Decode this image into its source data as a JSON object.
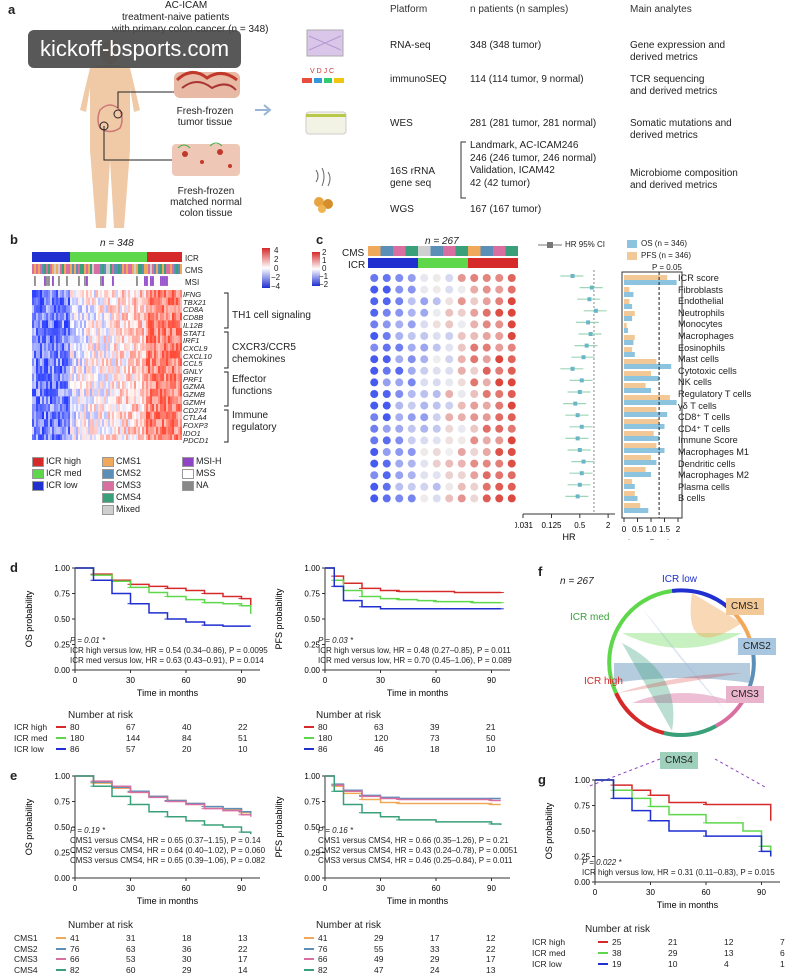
{
  "panel_a": {
    "letter": "a",
    "title": "AC-ICAM",
    "subtitle": "treatment-naive patients",
    "subtitle2": "with primary colon cancer (n = 348)",
    "tissue1": "Fresh-frozen\ntumor tissue",
    "tissue2": "Fresh-frozen\nmatched normal\ncolon tissue",
    "headers": [
      "Platform",
      "n patients (n samples)",
      "Main analytes"
    ],
    "rows": [
      {
        "platform": "RNA-seq",
        "n": "348 (348 tumor)",
        "analytes": "Gene expression and\nderived metrics"
      },
      {
        "platform": "immunoSEQ",
        "n": "114 (114 tumor, 9 normal)",
        "analytes": "TCR sequencing\nand derived metrics"
      },
      {
        "platform": "WES",
        "n": "281 (281 tumor, 281 normal)",
        "analytes": "Somatic mutations and\nderived metrics"
      },
      {
        "platform": "16S rRNA\ngene seq",
        "n": "Landmark, AC-ICAM246\n246 (246 tumor, 246 normal)\nValidation, ICAM42\n42 (42 tumor)",
        "analytes": "Microbiome composition\nand derived metrics"
      },
      {
        "platform": "WGS",
        "n": "167 (167 tumor)",
        "analytes": ""
      }
    ],
    "vdjc": "V  D  J  C"
  },
  "watermark": "kickoff-bsports.com",
  "panel_b": {
    "letter": "b",
    "n_label": "n = 348",
    "track_labels": [
      "ICR",
      "CMS",
      "MSI"
    ],
    "scale": [
      "4",
      "2",
      "0",
      "−2",
      "−4"
    ],
    "genes": [
      "IFNG",
      "TBX21",
      "CD8A",
      "CD8B",
      "IL12B",
      "STAT1",
      "IRF1",
      "CXCL9",
      "CXCL10",
      "CCL5",
      "GNLY",
      "PRF1",
      "GZMA",
      "GZMB",
      "GZMH",
      "CD274",
      "CTLA4",
      "FOXP3",
      "IDO1",
      "PDCD1"
    ],
    "groups": [
      "TH1 cell signaling",
      "CXCR3/CCR5\nchemokines",
      "Effector\nfunctions",
      "Immune\nregulatory"
    ],
    "legend": [
      {
        "label": "ICR high",
        "color": "#d62a2a"
      },
      {
        "label": "ICR med",
        "color": "#5ed84a"
      },
      {
        "label": "ICR low",
        "color": "#1f2fd0"
      },
      {
        "label": "CMS1",
        "color": "#f0a95a"
      },
      {
        "label": "CMS2",
        "color": "#5b8fb8"
      },
      {
        "label": "CMS3",
        "color": "#d96fa0"
      },
      {
        "label": "CMS4",
        "color": "#3aa07a"
      },
      {
        "label": "Mixed",
        "color": "#cfcfcf"
      },
      {
        "label": "MSI-H",
        "color": "#8e44c4"
      },
      {
        "label": "MSS",
        "color": "#ffffff"
      },
      {
        "label": "NA",
        "color": "#888888"
      }
    ]
  },
  "panel_c": {
    "letter": "c",
    "n_label": "n = 267",
    "track_labels": [
      "CMS",
      "ICR"
    ],
    "scale": [
      "2",
      "1",
      "0",
      "−1",
      "−2"
    ],
    "hr_legend": "HR 95% CI",
    "os_legend": "OS (n = 346)",
    "pfs_legend": "PFS (n = 346)",
    "p_label": "P = 0.05",
    "hr_ticks": [
      "0.031",
      "0.125",
      "0.5",
      "2"
    ],
    "hr_xlabel": "HR",
    "p_ticks": [
      "0",
      "0.5",
      "1.0",
      "1.5",
      "2"
    ],
    "p_xlabel": "−log₁₀ P value",
    "cells": [
      "ICR score",
      "Fibroblasts",
      "Endothelial",
      "Neutrophils",
      "Monocytes",
      "Macrophages",
      "Eosinophils",
      "Mast cells",
      "Cytotoxic cells",
      "NK cells",
      "Regulatory T cells",
      "γδ T cells",
      "CD8⁺ T cells",
      "CD4⁺ T cells",
      "Immune Score",
      "Macrophages M1",
      "Dendritic cells",
      "Macrophages M2",
      "Plasma cells",
      "B cells"
    ],
    "hr": [
      0.35,
      0.9,
      0.8,
      1.1,
      0.75,
      0.85,
      0.7,
      0.6,
      0.35,
      0.55,
      0.5,
      0.4,
      0.45,
      0.55,
      0.45,
      0.5,
      0.6,
      0.55,
      0.5,
      0.45
    ],
    "os_p": [
      1.95,
      0.35,
      0.3,
      0.3,
      0.15,
      0.35,
      0.4,
      1.75,
      1.3,
      1.0,
      1.95,
      1.6,
      1.5,
      1.3,
      1.5,
      1.2,
      1.0,
      0.4,
      0.5,
      0.9
    ],
    "pfs_p": [
      1.6,
      0.2,
      0.2,
      0.4,
      0.1,
      0.4,
      0.3,
      1.2,
      1.0,
      0.8,
      1.7,
      1.2,
      1.3,
      1.1,
      1.2,
      1.0,
      0.8,
      0.3,
      0.4,
      0.6
    ]
  },
  "panel_d": {
    "letter": "d",
    "os": {
      "ylabel": "OS probability",
      "xlabel": "Time in months",
      "p": "P = 0.01 *",
      "line1": "ICR high versus low, HR = 0.54 (0.34–0.86), P = 0.0095",
      "line2": "ICR med versus low, HR = 0.63 (0.43–0.91), P = 0.014"
    },
    "pfs": {
      "ylabel": "PFS probability",
      "xlabel": "Time in months",
      "p": "P = 0.03 *",
      "line1": "ICR high versus low, HR = 0.48 (0.27–0.85), P = 0.011",
      "line2": "ICR med versus low, HR = 0.70 (0.45–1.06), P = 0.089"
    },
    "risk_title": "Number at risk",
    "risk_groups": [
      "ICR high",
      "ICR med",
      "ICR low"
    ],
    "risk_os": [
      [
        "80",
        "67",
        "40",
        "22"
      ],
      [
        "180",
        "144",
        "84",
        "51"
      ],
      [
        "86",
        "57",
        "20",
        "10"
      ]
    ],
    "risk_pfs": [
      [
        "80",
        "63",
        "39",
        "21"
      ],
      [
        "180",
        "120",
        "73",
        "50"
      ],
      [
        "86",
        "46",
        "18",
        "10"
      ]
    ]
  },
  "panel_e": {
    "letter": "e",
    "os": {
      "ylabel": "OS probability",
      "xlabel": "Time in months",
      "p": "P = 0.19 *",
      "line1": "CMS1 versus CMS4, HR = 0.65 (0.37–1.15), P = 0.14",
      "line2": "CMS2 versus CMS4, HR = 0.64 (0.40–1.02), P = 0.060",
      "line3": "CMS3 versus CMS4, HR = 0.65 (0.39–1.06), P = 0.082"
    },
    "pfs": {
      "ylabel": "PFS probability",
      "xlabel": "Time in months",
      "p": "P = 0.16 *",
      "line1": "CMS1 versus CMS4, HR = 0.66 (0.35–1.26), P = 0.21",
      "line2": "CMS2 versus CMS4, HR = 0.43 (0.24–0.78), P = 0.0051",
      "line3": "CMS3 versus CMS4, HR = 0.46 (0.25–0.84), P = 0.011"
    },
    "risk_title": "Number at risk",
    "risk_groups": [
      "CMS1",
      "CMS2",
      "CMS3",
      "CMS4"
    ],
    "risk_os": [
      [
        "41",
        "31",
        "18",
        "13"
      ],
      [
        "76",
        "63",
        "36",
        "22"
      ],
      [
        "66",
        "53",
        "30",
        "17"
      ],
      [
        "82",
        "60",
        "29",
        "14"
      ]
    ],
    "risk_pfs": [
      [
        "41",
        "29",
        "17",
        "12"
      ],
      [
        "76",
        "55",
        "33",
        "22"
      ],
      [
        "66",
        "49",
        "29",
        "17"
      ],
      [
        "82",
        "47",
        "24",
        "13"
      ]
    ]
  },
  "panel_f": {
    "letter": "f",
    "n_label": "n = 267",
    "labels": [
      "ICR low",
      "CMS1",
      "CMS2",
      "CMS3",
      "CMS4",
      "ICR high",
      "ICR med"
    ]
  },
  "panel_g": {
    "letter": "g",
    "ylabel": "OS probability",
    "xlabel": "Time in months",
    "p": "P = 0.022 *",
    "line1": "ICR high versus low, HR = 0.31 (0.11–0.83), P = 0.015",
    "risk_title": "Number at risk",
    "risk_groups": [
      "ICR high",
      "ICR med",
      "ICR low"
    ],
    "risk": [
      [
        "25",
        "21",
        "12",
        "7"
      ],
      [
        "38",
        "29",
        "13",
        "6"
      ],
      [
        "19",
        "10",
        "4",
        "1"
      ]
    ]
  },
  "chart_data": [
    {
      "type": "line",
      "id": "d_os",
      "ylabel": "OS probability",
      "xlabel": "Time in months",
      "xlim": [
        0,
        100
      ],
      "ylim": [
        0,
        1
      ],
      "x_ticks": [
        0,
        30,
        60,
        90
      ],
      "series": [
        {
          "name": "ICR high",
          "color": "#d62a2a",
          "x": [
            0,
            10,
            20,
            30,
            40,
            50,
            60,
            70,
            80,
            90,
            95
          ],
          "y": [
            1,
            0.94,
            0.88,
            0.84,
            0.82,
            0.8,
            0.78,
            0.75,
            0.72,
            0.7,
            0.6
          ]
        },
        {
          "name": "ICR med",
          "color": "#5ed84a",
          "x": [
            0,
            10,
            20,
            30,
            40,
            50,
            60,
            70,
            80,
            90,
            95
          ],
          "y": [
            1,
            0.93,
            0.87,
            0.81,
            0.76,
            0.72,
            0.69,
            0.66,
            0.65,
            0.63,
            0.55
          ]
        },
        {
          "name": "ICR low",
          "color": "#1f2fd0",
          "x": [
            0,
            10,
            20,
            30,
            40,
            50,
            60,
            70,
            80,
            90,
            95
          ],
          "y": [
            1,
            0.88,
            0.75,
            0.65,
            0.56,
            0.5,
            0.47,
            0.44,
            0.43,
            0.43,
            0.43
          ]
        }
      ]
    },
    {
      "type": "line",
      "id": "d_pfs",
      "ylabel": "PFS probability",
      "xlabel": "Time in months",
      "xlim": [
        0,
        100
      ],
      "ylim": [
        0,
        1
      ],
      "x_ticks": [
        0,
        30,
        60,
        90
      ],
      "series": [
        {
          "name": "ICR high",
          "color": "#d62a2a",
          "x": [
            0,
            5,
            10,
            20,
            30,
            40,
            50,
            60,
            70,
            80,
            90,
            95
          ],
          "y": [
            1,
            0.92,
            0.85,
            0.8,
            0.78,
            0.77,
            0.77,
            0.77,
            0.76,
            0.76,
            0.76,
            0.76
          ]
        },
        {
          "name": "ICR med",
          "color": "#5ed84a",
          "x": [
            0,
            5,
            10,
            20,
            30,
            40,
            50,
            60,
            70,
            80,
            90,
            95
          ],
          "y": [
            1,
            0.88,
            0.78,
            0.72,
            0.7,
            0.69,
            0.68,
            0.67,
            0.67,
            0.66,
            0.66,
            0.66
          ]
        },
        {
          "name": "ICR low",
          "color": "#1f2fd0",
          "x": [
            0,
            5,
            10,
            20,
            30,
            40,
            50,
            60,
            70,
            80,
            90,
            95
          ],
          "y": [
            1,
            0.82,
            0.68,
            0.62,
            0.6,
            0.6,
            0.6,
            0.6,
            0.6,
            0.6,
            0.6,
            0.6
          ]
        }
      ]
    },
    {
      "type": "line",
      "id": "e_os",
      "ylabel": "OS probability",
      "xlabel": "Time in months",
      "xlim": [
        0,
        100
      ],
      "ylim": [
        0,
        1
      ],
      "x_ticks": [
        0,
        30,
        60,
        90
      ],
      "series": [
        {
          "name": "CMS1",
          "color": "#f0a95a",
          "x": [
            0,
            10,
            20,
            30,
            40,
            50,
            60,
            70,
            80,
            90,
            95
          ],
          "y": [
            1,
            0.93,
            0.88,
            0.84,
            0.8,
            0.76,
            0.73,
            0.7,
            0.67,
            0.64,
            0.62
          ]
        },
        {
          "name": "CMS2",
          "color": "#5b8fb8",
          "x": [
            0,
            10,
            20,
            30,
            40,
            50,
            60,
            70,
            80,
            90,
            95
          ],
          "y": [
            1,
            0.94,
            0.89,
            0.85,
            0.8,
            0.76,
            0.73,
            0.7,
            0.68,
            0.65,
            0.63
          ]
        },
        {
          "name": "CMS3",
          "color": "#d96fa0",
          "x": [
            0,
            10,
            20,
            30,
            40,
            50,
            60,
            70,
            80,
            90,
            95
          ],
          "y": [
            1,
            0.95,
            0.9,
            0.84,
            0.79,
            0.75,
            0.72,
            0.68,
            0.66,
            0.62,
            0.6
          ]
        },
        {
          "name": "CMS4",
          "color": "#3aa07a",
          "x": [
            0,
            10,
            20,
            30,
            40,
            50,
            60,
            70,
            80,
            90,
            95
          ],
          "y": [
            1,
            0.9,
            0.8,
            0.72,
            0.65,
            0.6,
            0.56,
            0.52,
            0.5,
            0.45,
            0.43
          ]
        }
      ]
    },
    {
      "type": "line",
      "id": "e_pfs",
      "ylabel": "PFS probability",
      "xlabel": "Time in months",
      "xlim": [
        0,
        100
      ],
      "ylim": [
        0,
        1
      ],
      "x_ticks": [
        0,
        30,
        60,
        90
      ],
      "series": [
        {
          "name": "CMS1",
          "color": "#f0a95a",
          "x": [
            0,
            5,
            10,
            20,
            30,
            40,
            60,
            90,
            95
          ],
          "y": [
            1,
            0.9,
            0.83,
            0.77,
            0.74,
            0.73,
            0.73,
            0.72,
            0.72
          ]
        },
        {
          "name": "CMS2",
          "color": "#5b8fb8",
          "x": [
            0,
            5,
            10,
            20,
            30,
            40,
            60,
            90,
            95
          ],
          "y": [
            1,
            0.92,
            0.86,
            0.81,
            0.79,
            0.78,
            0.78,
            0.78,
            0.78
          ]
        },
        {
          "name": "CMS3",
          "color": "#d96fa0",
          "x": [
            0,
            5,
            10,
            20,
            30,
            40,
            60,
            90,
            95
          ],
          "y": [
            1,
            0.91,
            0.85,
            0.8,
            0.78,
            0.77,
            0.77,
            0.76,
            0.76
          ]
        },
        {
          "name": "CMS4",
          "color": "#3aa07a",
          "x": [
            0,
            5,
            10,
            20,
            30,
            40,
            60,
            90,
            95
          ],
          "y": [
            1,
            0.85,
            0.72,
            0.64,
            0.6,
            0.57,
            0.55,
            0.53,
            0.52
          ]
        }
      ]
    },
    {
      "type": "line",
      "id": "g_os",
      "ylabel": "OS probability",
      "xlabel": "Time in months",
      "xlim": [
        0,
        100
      ],
      "ylim": [
        0,
        1
      ],
      "x_ticks": [
        0,
        30,
        60,
        90
      ],
      "series": [
        {
          "name": "ICR high",
          "color": "#d62a2a",
          "x": [
            0,
            10,
            20,
            30,
            40,
            60,
            80,
            90,
            95
          ],
          "y": [
            1,
            0.95,
            0.9,
            0.85,
            0.78,
            0.76,
            0.76,
            0.76,
            0.6
          ]
        },
        {
          "name": "ICR med",
          "color": "#5ed84a",
          "x": [
            0,
            10,
            20,
            30,
            40,
            60,
            80,
            90,
            95
          ],
          "y": [
            1,
            0.9,
            0.82,
            0.74,
            0.66,
            0.58,
            0.5,
            0.35,
            0.3
          ]
        },
        {
          "name": "ICR low",
          "color": "#1f2fd0",
          "x": [
            0,
            10,
            20,
            30,
            40,
            60,
            80,
            90,
            95
          ],
          "y": [
            1,
            0.82,
            0.7,
            0.6,
            0.5,
            0.45,
            0.45,
            0.3,
            0.25
          ]
        }
      ]
    }
  ]
}
